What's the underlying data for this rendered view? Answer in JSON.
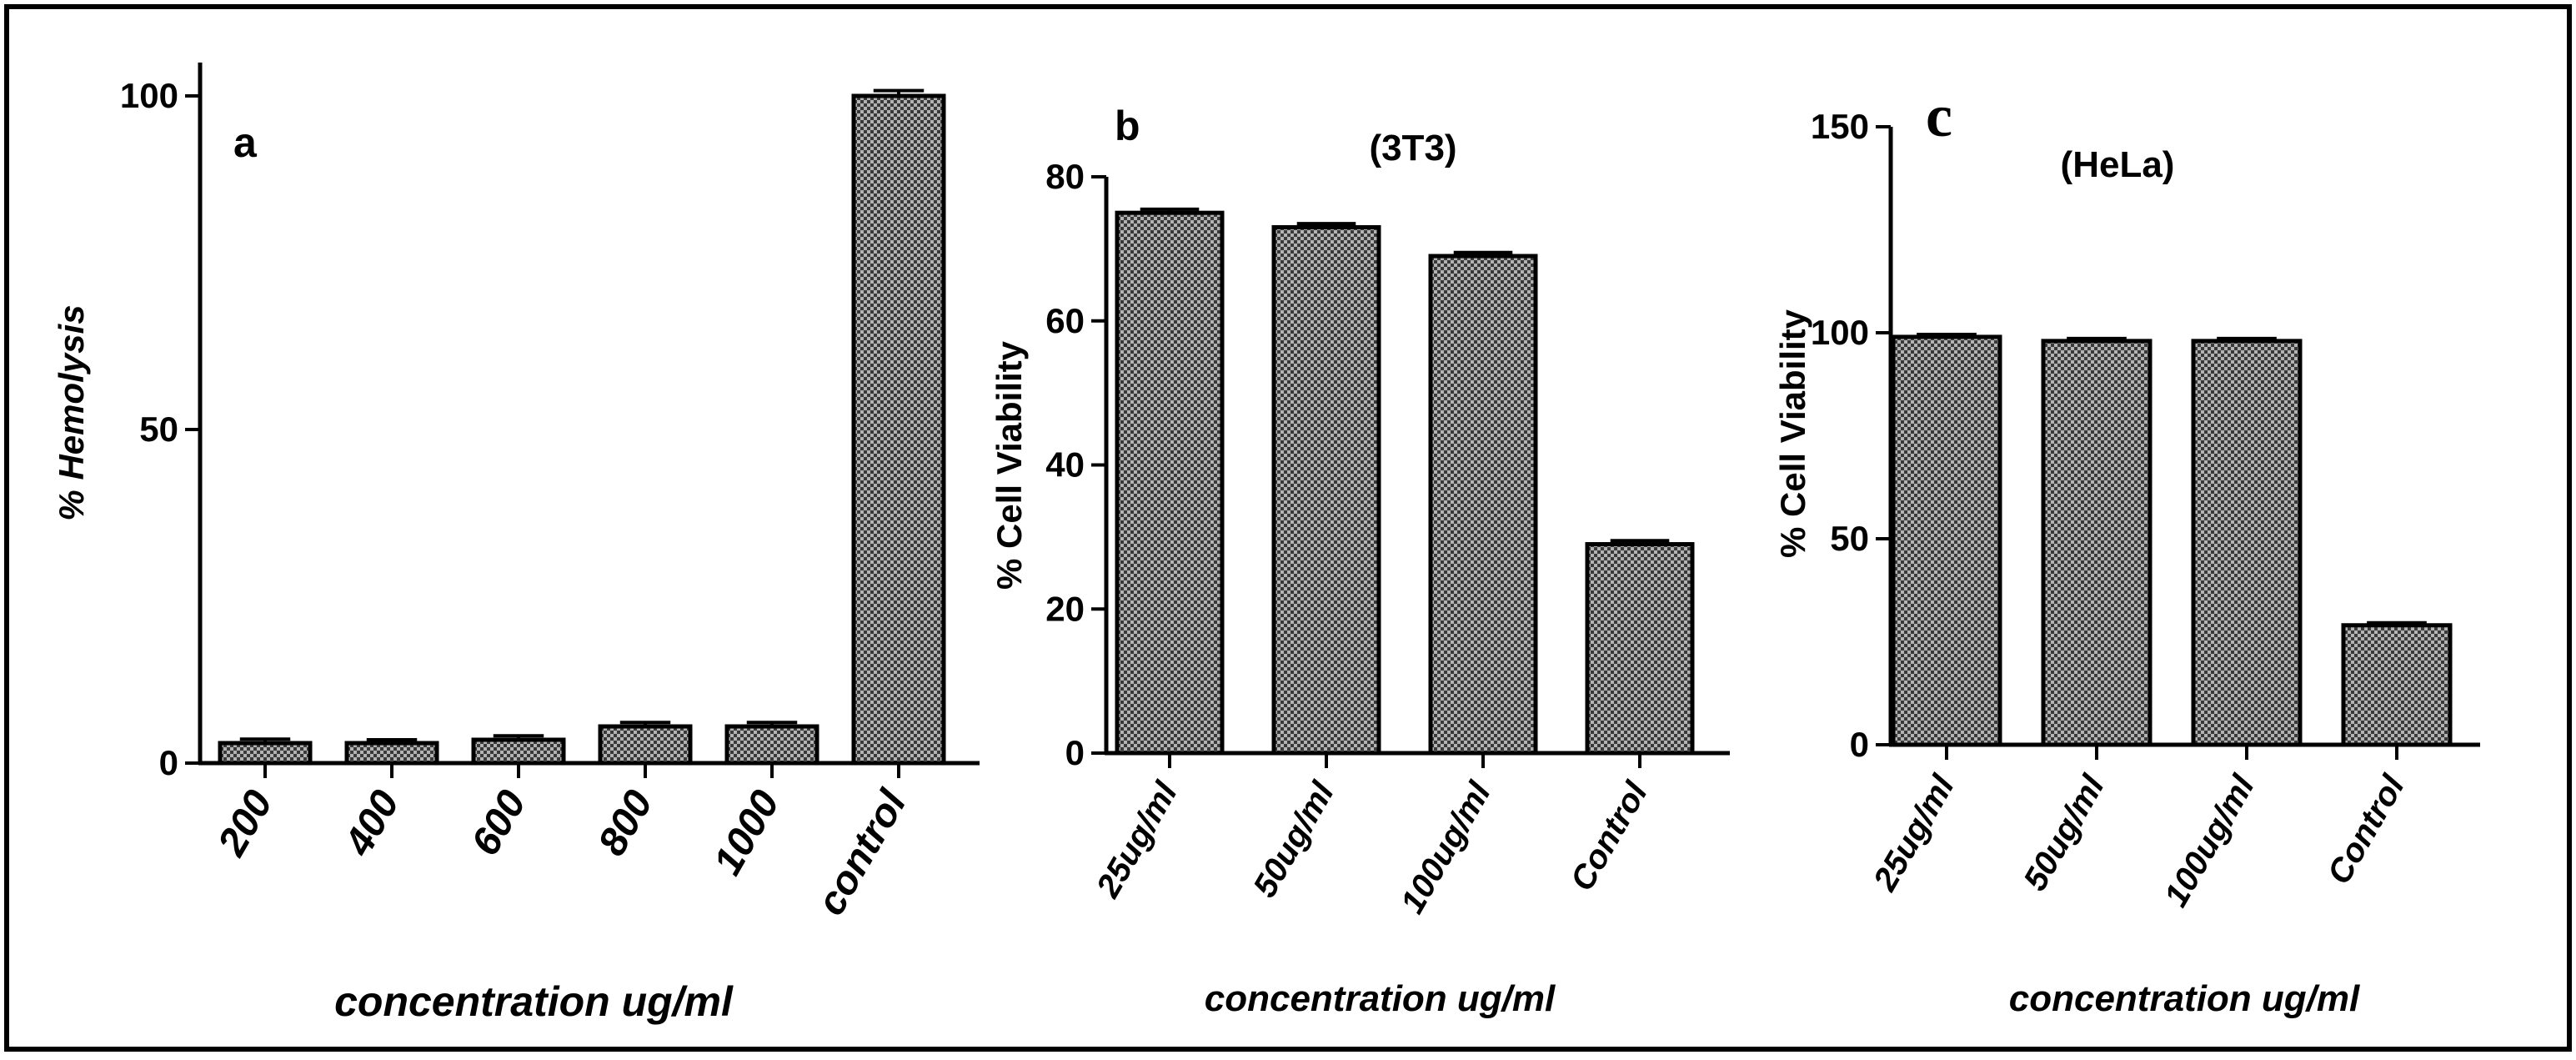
{
  "colors": {
    "bar_fill": "#a6a6a6",
    "bar_pattern_dark": "#3a3a3a",
    "axis": "#000000",
    "border": "#000000"
  },
  "chart_data": [
    {
      "type": "bar",
      "panel": "a",
      "title": "",
      "categories": [
        "200",
        "400",
        "600",
        "800",
        "1000",
        "control"
      ],
      "values": [
        3,
        3,
        3.5,
        5.5,
        5.5,
        100
      ],
      "errors": [
        0.6,
        0.5,
        0.6,
        0.6,
        0.6,
        0.8
      ],
      "ylim": [
        0,
        105
      ],
      "yticks": [
        0,
        50,
        100
      ],
      "xlabel": "concentration ug/ml",
      "ylabel": "% Hemolysis"
    },
    {
      "type": "bar",
      "panel": "b",
      "title": "(3T3)",
      "categories": [
        "25ug/ml",
        "50ug/ml",
        "100ug/ml",
        "Control"
      ],
      "values": [
        75,
        73,
        69,
        29
      ],
      "errors": [
        0.5,
        0.5,
        0.5,
        0.5
      ],
      "ylim": [
        0,
        80
      ],
      "yticks": [
        0,
        20,
        40,
        60,
        80
      ],
      "xlabel": "concentration ug/ml",
      "ylabel": "% Cell Viability"
    },
    {
      "type": "bar",
      "panel": "c",
      "title": "(HeLa)",
      "categories": [
        "25ug/ml",
        "50ug/ml",
        "100ug/ml",
        "Control"
      ],
      "values": [
        99,
        98,
        98,
        29
      ],
      "errors": [
        0.6,
        0.6,
        0.6,
        0.6
      ],
      "ylim": [
        0,
        150
      ],
      "yticks": [
        0,
        50,
        100,
        150
      ],
      "xlabel": "concentration ug/ml",
      "ylabel": "% Cell Viability"
    }
  ]
}
